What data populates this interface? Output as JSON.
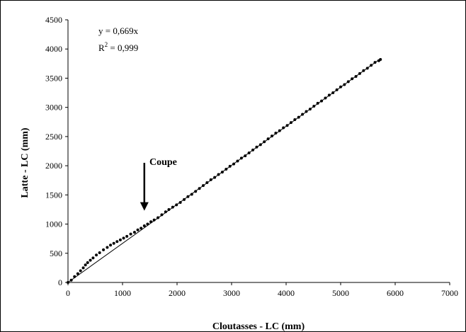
{
  "chart_data": {
    "type": "scatter",
    "xlabel": "Cloutasses - LC (mm)",
    "ylabel": "Latte - LC (mm)",
    "xlim": [
      0,
      7000
    ],
    "ylim": [
      0,
      4500
    ],
    "x_ticks": [
      "0",
      "1000",
      "2000",
      "3000",
      "4000",
      "5000",
      "6000",
      "7000"
    ],
    "y_ticks": [
      "0",
      "500",
      "1000",
      "1500",
      "2000",
      "2500",
      "3000",
      "3500",
      "4000",
      "4500"
    ],
    "grid": false,
    "legend": "none",
    "trendline": {
      "equation_text": "y = 0,669x",
      "r2_prefix": "R",
      "r2_exp": "2",
      "r2_suffix": " = 0,999",
      "slope": 0.669,
      "x_range": [
        0,
        5730
      ]
    },
    "annotation": {
      "text": "Coupe",
      "arrow_from": [
        1400,
        2050
      ],
      "arrow_to": [
        1400,
        1230
      ]
    },
    "series": [
      {
        "points": [
          [
            0,
            0
          ],
          [
            60,
            40
          ],
          [
            120,
            100
          ],
          [
            180,
            150
          ],
          [
            230,
            200
          ],
          [
            280,
            250
          ],
          [
            320,
            300
          ],
          [
            360,
            340
          ],
          [
            410,
            380
          ],
          [
            460,
            420
          ],
          [
            520,
            470
          ],
          [
            580,
            510
          ],
          [
            650,
            560
          ],
          [
            720,
            600
          ],
          [
            780,
            640
          ],
          [
            840,
            670
          ],
          [
            900,
            700
          ],
          [
            960,
            730
          ],
          [
            1020,
            760
          ],
          [
            1080,
            790
          ],
          [
            1150,
            830
          ],
          [
            1220,
            860
          ],
          [
            1280,
            900
          ],
          [
            1340,
            930
          ],
          [
            1400,
            970
          ],
          [
            1460,
            1000
          ],
          [
            1520,
            1040
          ],
          [
            1580,
            1070
          ],
          [
            1650,
            1110
          ],
          [
            1720,
            1160
          ],
          [
            1790,
            1210
          ],
          [
            1850,
            1250
          ],
          [
            1920,
            1290
          ],
          [
            1990,
            1330
          ],
          [
            2060,
            1370
          ],
          [
            2130,
            1420
          ],
          [
            2200,
            1470
          ],
          [
            2270,
            1510
          ],
          [
            2340,
            1560
          ],
          [
            2410,
            1610
          ],
          [
            2480,
            1660
          ],
          [
            2550,
            1710
          ],
          [
            2620,
            1760
          ],
          [
            2690,
            1800
          ],
          [
            2760,
            1850
          ],
          [
            2830,
            1890
          ],
          [
            2900,
            1940
          ],
          [
            2970,
            1990
          ],
          [
            3040,
            2030
          ],
          [
            3110,
            2080
          ],
          [
            3180,
            2130
          ],
          [
            3250,
            2170
          ],
          [
            3320,
            2220
          ],
          [
            3390,
            2270
          ],
          [
            3460,
            2320
          ],
          [
            3530,
            2360
          ],
          [
            3600,
            2410
          ],
          [
            3670,
            2460
          ],
          [
            3740,
            2510
          ],
          [
            3810,
            2560
          ],
          [
            3880,
            2600
          ],
          [
            3950,
            2650
          ],
          [
            4020,
            2690
          ],
          [
            4090,
            2740
          ],
          [
            4160,
            2790
          ],
          [
            4230,
            2830
          ],
          [
            4300,
            2880
          ],
          [
            4370,
            2930
          ],
          [
            4440,
            2970
          ],
          [
            4510,
            3020
          ],
          [
            4580,
            3070
          ],
          [
            4650,
            3110
          ],
          [
            4720,
            3160
          ],
          [
            4790,
            3210
          ],
          [
            4860,
            3250
          ],
          [
            4930,
            3300
          ],
          [
            5000,
            3350
          ],
          [
            5070,
            3390
          ],
          [
            5140,
            3440
          ],
          [
            5210,
            3490
          ],
          [
            5280,
            3530
          ],
          [
            5350,
            3580
          ],
          [
            5420,
            3630
          ],
          [
            5490,
            3670
          ],
          [
            5560,
            3720
          ],
          [
            5630,
            3770
          ],
          [
            5700,
            3800
          ],
          [
            5730,
            3820
          ]
        ]
      }
    ]
  }
}
